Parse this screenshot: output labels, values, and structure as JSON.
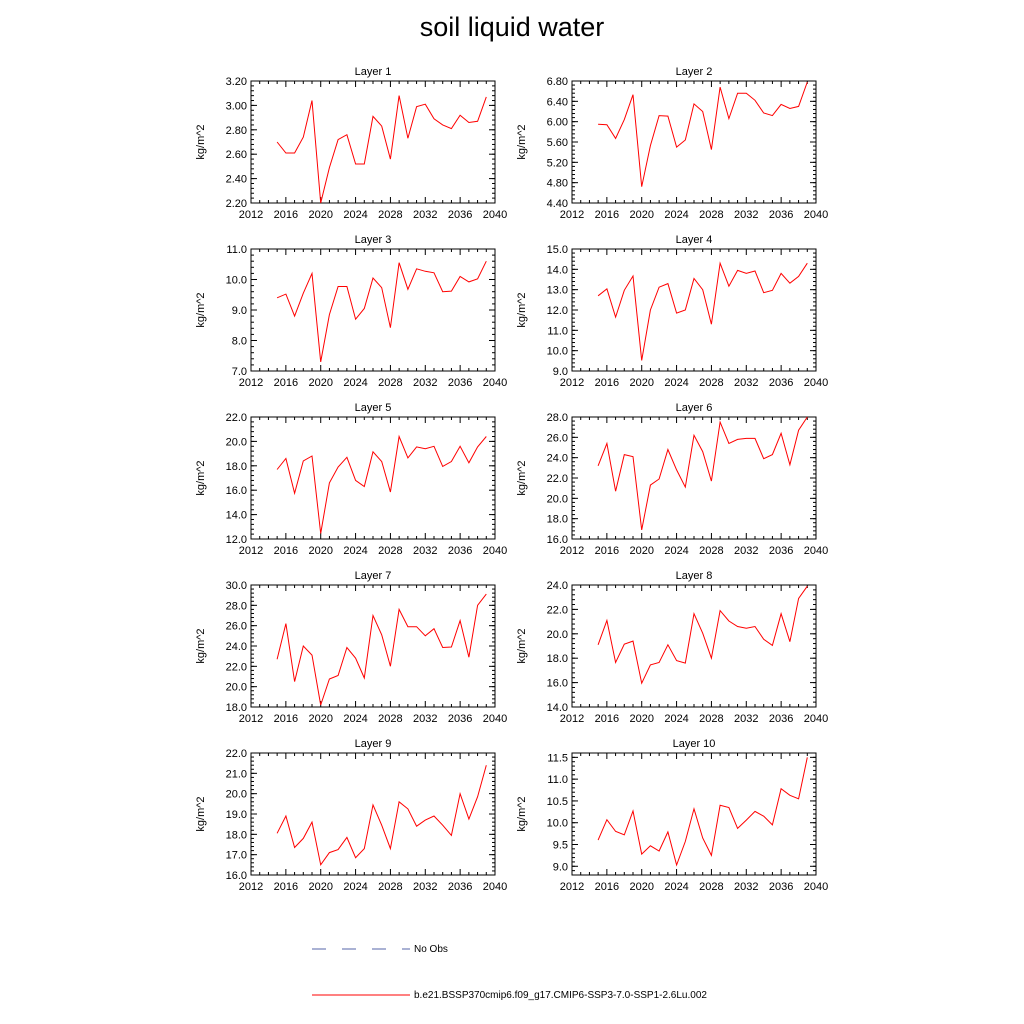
{
  "title": "soil liquid water",
  "legend": {
    "obs_label": "No Obs",
    "obs_color": "#5566aa",
    "model_label": "b.e21.BSSP370cmip6.f09_g17.CMIP6-SSP3-7.0-SSP1-2.6Lu.002",
    "model_color": "#ff0000"
  },
  "chart_data": [
    {
      "type": "line",
      "title": "Layer 1",
      "ylabel": "kg/m^2",
      "xlim": [
        2012,
        2040
      ],
      "ylim": [
        2.2,
        3.2
      ],
      "xticks": [
        "2012",
        "2016",
        "2020",
        "2024",
        "2028",
        "2032",
        "2036",
        "2040"
      ],
      "yticks": [
        "2.20",
        "2.40",
        "2.60",
        "2.80",
        "3.00",
        "3.20"
      ],
      "x": [
        2015,
        2016,
        2017,
        2018,
        2019,
        2020,
        2021,
        2022,
        2023,
        2024,
        2025,
        2026,
        2027,
        2028,
        2029,
        2030,
        2031,
        2032,
        2033,
        2034,
        2035,
        2036,
        2037,
        2038,
        2039
      ],
      "series": [
        {
          "values": [
            2.7,
            2.61,
            2.61,
            2.74,
            3.04,
            2.2,
            2.49,
            2.72,
            2.76,
            2.52,
            2.52,
            2.91,
            2.83,
            2.56,
            3.08,
            2.73,
            2.99,
            3.01,
            2.89,
            2.84,
            2.81,
            2.92,
            2.86,
            2.87,
            3.07
          ]
        }
      ]
    },
    {
      "type": "line",
      "title": "Layer 2",
      "ylabel": "kg/m^2",
      "xlim": [
        2012,
        2040
      ],
      "ylim": [
        4.4,
        6.8
      ],
      "xticks": [
        "2012",
        "2016",
        "2020",
        "2024",
        "2028",
        "2032",
        "2036",
        "2040"
      ],
      "yticks": [
        "4.40",
        "4.80",
        "5.20",
        "5.60",
        "6.00",
        "6.40",
        "6.80"
      ],
      "x": [
        2015,
        2016,
        2017,
        2018,
        2019,
        2020,
        2021,
        2022,
        2023,
        2024,
        2025,
        2026,
        2027,
        2028,
        2029,
        2030,
        2031,
        2032,
        2033,
        2034,
        2035,
        2036,
        2037,
        2038,
        2039
      ],
      "series": [
        {
          "values": [
            5.95,
            5.94,
            5.67,
            6.04,
            6.53,
            4.72,
            5.53,
            6.12,
            6.11,
            5.5,
            5.64,
            6.35,
            6.2,
            5.45,
            6.68,
            6.06,
            6.56,
            6.56,
            6.42,
            6.17,
            6.12,
            6.34,
            6.26,
            6.3,
            6.78
          ]
        }
      ]
    },
    {
      "type": "line",
      "title": "Layer 3",
      "ylabel": "kg/m^2",
      "xlim": [
        2012,
        2040
      ],
      "ylim": [
        7.0,
        11.0
      ],
      "xticks": [
        "2012",
        "2016",
        "2020",
        "2024",
        "2028",
        "2032",
        "2036",
        "2040"
      ],
      "yticks": [
        "7.0",
        "8.0",
        "9.0",
        "10.0",
        "11.0"
      ],
      "x": [
        2015,
        2016,
        2017,
        2018,
        2019,
        2020,
        2021,
        2022,
        2023,
        2024,
        2025,
        2026,
        2027,
        2028,
        2029,
        2030,
        2031,
        2032,
        2033,
        2034,
        2035,
        2036,
        2037,
        2038,
        2039
      ],
      "series": [
        {
          "values": [
            9.4,
            9.52,
            8.8,
            9.55,
            10.2,
            7.3,
            8.85,
            9.77,
            9.77,
            8.7,
            9.05,
            10.05,
            9.73,
            8.42,
            10.55,
            9.68,
            10.35,
            10.27,
            10.22,
            9.6,
            9.62,
            10.1,
            9.92,
            10.02,
            10.6
          ]
        }
      ]
    },
    {
      "type": "line",
      "title": "Layer 4",
      "ylabel": "kg/m^2",
      "xlim": [
        2012,
        2040
      ],
      "ylim": [
        9.0,
        15.0
      ],
      "xticks": [
        "2012",
        "2016",
        "2020",
        "2024",
        "2028",
        "2032",
        "2036",
        "2040"
      ],
      "yticks": [
        "9.0",
        "10.0",
        "11.0",
        "12.0",
        "13.0",
        "14.0",
        "15.0"
      ],
      "x": [
        2015,
        2016,
        2017,
        2018,
        2019,
        2020,
        2021,
        2022,
        2023,
        2024,
        2025,
        2026,
        2027,
        2028,
        2029,
        2030,
        2031,
        2032,
        2033,
        2034,
        2035,
        2036,
        2037,
        2038,
        2039
      ],
      "series": [
        {
          "values": [
            12.7,
            13.04,
            11.65,
            12.97,
            13.67,
            9.52,
            12.0,
            13.12,
            13.3,
            11.85,
            12.0,
            13.55,
            13.0,
            11.3,
            14.3,
            13.17,
            13.95,
            13.8,
            13.92,
            12.85,
            12.97,
            13.8,
            13.32,
            13.65,
            14.3
          ]
        }
      ]
    },
    {
      "type": "line",
      "title": "Layer 5",
      "ylabel": "kg/m^2",
      "xlim": [
        2012,
        2040
      ],
      "ylim": [
        12.0,
        22.0
      ],
      "xticks": [
        "2012",
        "2016",
        "2020",
        "2024",
        "2028",
        "2032",
        "2036",
        "2040"
      ],
      "yticks": [
        "12.0",
        "14.0",
        "16.0",
        "18.0",
        "20.0",
        "22.0"
      ],
      "x": [
        2015,
        2016,
        2017,
        2018,
        2019,
        2020,
        2021,
        2022,
        2023,
        2024,
        2025,
        2026,
        2027,
        2028,
        2029,
        2030,
        2031,
        2032,
        2033,
        2034,
        2035,
        2036,
        2037,
        2038,
        2039
      ],
      "series": [
        {
          "values": [
            17.7,
            18.6,
            15.75,
            18.4,
            18.8,
            12.45,
            16.6,
            17.9,
            18.7,
            16.8,
            16.3,
            19.15,
            18.35,
            15.85,
            20.4,
            18.65,
            19.55,
            19.4,
            19.6,
            17.95,
            18.35,
            19.6,
            18.25,
            19.55,
            20.4
          ]
        }
      ]
    },
    {
      "type": "line",
      "title": "Layer 6",
      "ylabel": "kg/m^2",
      "xlim": [
        2012,
        2040
      ],
      "ylim": [
        16.0,
        28.0
      ],
      "xticks": [
        "2012",
        "2016",
        "2020",
        "2024",
        "2028",
        "2032",
        "2036",
        "2040"
      ],
      "yticks": [
        "16.0",
        "18.0",
        "20.0",
        "22.0",
        "24.0",
        "26.0",
        "28.0"
      ],
      "x": [
        2015,
        2016,
        2017,
        2018,
        2019,
        2020,
        2021,
        2022,
        2023,
        2024,
        2025,
        2026,
        2027,
        2028,
        2029,
        2030,
        2031,
        2032,
        2033,
        2034,
        2035,
        2036,
        2037,
        2038,
        2039
      ],
      "series": [
        {
          "values": [
            23.2,
            25.4,
            20.7,
            24.3,
            24.1,
            16.9,
            21.3,
            21.9,
            24.8,
            22.8,
            21.1,
            26.2,
            24.6,
            21.7,
            27.5,
            25.4,
            25.8,
            25.9,
            25.9,
            23.9,
            24.3,
            26.4,
            23.3,
            26.7,
            28.0
          ]
        }
      ]
    },
    {
      "type": "line",
      "title": "Layer 7",
      "ylabel": "kg/m^2",
      "xlim": [
        2012,
        2040
      ],
      "ylim": [
        18.0,
        30.0
      ],
      "xticks": [
        "2012",
        "2016",
        "2020",
        "2024",
        "2028",
        "2032",
        "2036",
        "2040"
      ],
      "yticks": [
        "18.0",
        "20.0",
        "22.0",
        "24.0",
        "26.0",
        "28.0",
        "30.0"
      ],
      "x": [
        2015,
        2016,
        2017,
        2018,
        2019,
        2020,
        2021,
        2022,
        2023,
        2024,
        2025,
        2026,
        2027,
        2028,
        2029,
        2030,
        2031,
        2032,
        2033,
        2034,
        2035,
        2036,
        2037,
        2038,
        2039
      ],
      "series": [
        {
          "values": [
            22.7,
            26.2,
            20.5,
            24.0,
            23.1,
            18.2,
            20.75,
            21.1,
            23.85,
            22.8,
            20.85,
            27.0,
            25.1,
            22.0,
            27.6,
            25.9,
            25.9,
            25.0,
            25.7,
            23.85,
            23.9,
            26.5,
            22.9,
            28.0,
            29.1
          ]
        }
      ]
    },
    {
      "type": "line",
      "title": "Layer 8",
      "ylabel": "kg/m^2",
      "xlim": [
        2012,
        2040
      ],
      "ylim": [
        14.0,
        24.0
      ],
      "xticks": [
        "2012",
        "2016",
        "2020",
        "2024",
        "2028",
        "2032",
        "2036",
        "2040"
      ],
      "yticks": [
        "14.0",
        "16.0",
        "18.0",
        "20.0",
        "22.0",
        "24.0"
      ],
      "x": [
        2015,
        2016,
        2017,
        2018,
        2019,
        2020,
        2021,
        2022,
        2023,
        2024,
        2025,
        2026,
        2027,
        2028,
        2029,
        2030,
        2031,
        2032,
        2033,
        2034,
        2035,
        2036,
        2037,
        2038,
        2039
      ],
      "series": [
        {
          "values": [
            19.1,
            21.1,
            17.65,
            19.15,
            19.4,
            15.95,
            17.45,
            17.65,
            19.1,
            17.8,
            17.6,
            21.65,
            20.05,
            18.0,
            21.9,
            21.05,
            20.6,
            20.45,
            20.6,
            19.55,
            19.05,
            21.65,
            19.35,
            22.9,
            23.9
          ]
        }
      ]
    },
    {
      "type": "line",
      "title": "Layer 9",
      "ylabel": "kg/m^2",
      "xlim": [
        2012,
        2040
      ],
      "ylim": [
        16.0,
        22.0
      ],
      "xticks": [
        "2012",
        "2016",
        "2020",
        "2024",
        "2028",
        "2032",
        "2036",
        "2040"
      ],
      "yticks": [
        "16.0",
        "17.0",
        "18.0",
        "19.0",
        "20.0",
        "21.0",
        "22.0"
      ],
      "x": [
        2015,
        2016,
        2017,
        2018,
        2019,
        2020,
        2021,
        2022,
        2023,
        2024,
        2025,
        2026,
        2027,
        2028,
        2029,
        2030,
        2031,
        2032,
        2033,
        2034,
        2035,
        2036,
        2037,
        2038,
        2039
      ],
      "series": [
        {
          "values": [
            18.05,
            18.9,
            17.35,
            17.8,
            18.6,
            16.5,
            17.1,
            17.25,
            17.85,
            16.85,
            17.3,
            19.45,
            18.45,
            17.3,
            19.6,
            19.25,
            18.4,
            18.7,
            18.9,
            18.45,
            17.95,
            20.0,
            18.75,
            19.85,
            21.4
          ]
        }
      ]
    },
    {
      "type": "line",
      "title": "Layer 10",
      "ylabel": "kg/m^2",
      "xlim": [
        2012,
        2040
      ],
      "ylim": [
        8.8,
        11.6
      ],
      "xticks": [
        "2012",
        "2016",
        "2020",
        "2024",
        "2028",
        "2032",
        "2036",
        "2040"
      ],
      "yticks": [
        "9.0",
        "9.5",
        "10.0",
        "10.5",
        "11.0",
        "11.5"
      ],
      "x": [
        2015,
        2016,
        2017,
        2018,
        2019,
        2020,
        2021,
        2022,
        2023,
        2024,
        2025,
        2026,
        2027,
        2028,
        2029,
        2030,
        2031,
        2032,
        2033,
        2034,
        2035,
        2036,
        2037,
        2038,
        2039
      ],
      "series": [
        {
          "values": [
            9.6,
            10.07,
            9.8,
            9.72,
            10.27,
            9.28,
            9.47,
            9.35,
            9.79,
            9.03,
            9.57,
            10.32,
            9.65,
            9.25,
            10.4,
            10.35,
            9.87,
            10.06,
            10.26,
            10.15,
            9.95,
            10.78,
            10.63,
            10.55,
            11.5
          ]
        }
      ]
    }
  ]
}
